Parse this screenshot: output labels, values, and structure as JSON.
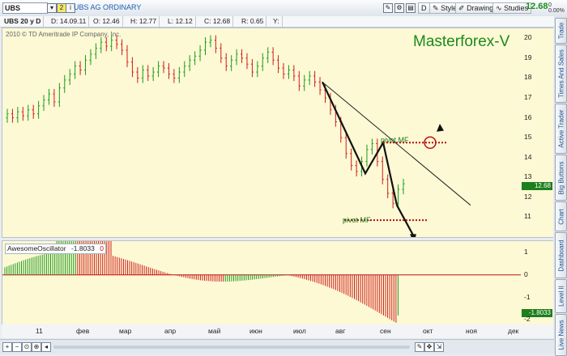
{
  "toolbar": {
    "symbol": "UBS",
    "badge": "2",
    "description": "UBS AG ORDINARY",
    "d_label": "D",
    "style_label": "Style",
    "drawings_label": "Drawings",
    "studies_label": "Studies",
    "last_price": "12.68",
    "change_a": "0",
    "change_b": "0.00%"
  },
  "info_bar": {
    "period": "UBS 20 y D",
    "date": "D: 14.09.11",
    "open": "O: 12.46",
    "high": "H: 12.77",
    "low": "L: 12.12",
    "close": "C: 12.68",
    "range": "R: 0.65",
    "y": "Y:"
  },
  "chart": {
    "copyright": "2010 © TD Ameritrade IP Company, Inc.",
    "watermark": "Masterforex-V",
    "pivot_label_1": "pivot MF",
    "pivot_label_2": "pivot MF",
    "price_badge": "12.68",
    "osc_name": "AwesomeOscillator",
    "osc_value": "-1.8033",
    "osc_zero": "0",
    "osc_badge": "-1.8033",
    "colors": {
      "up": "#1e9a1e",
      "down": "#d01c1c",
      "pivot": "#b01010",
      "background": "#fcf9d4"
    }
  },
  "chart_data": [
    {
      "type": "candlestick",
      "title": "UBS 20 y D",
      "x": [
        "фев",
        "мар",
        "апр",
        "май",
        "июн",
        "июл",
        "авг",
        "сен"
      ],
      "ylim": [
        10,
        20.5
      ],
      "y_ticks": [
        "20",
        "19",
        "18",
        "17",
        "16",
        "15",
        "14",
        "13",
        "12",
        "11"
      ],
      "closes": [
        16.2,
        16.0,
        16.3,
        16.1,
        16.4,
        16.2,
        16.6,
        16.9,
        17.2,
        16.8,
        17.5,
        17.9,
        18.2,
        18.6,
        18.4,
        18.9,
        19.2,
        19.5,
        19.8,
        19.6,
        19.9,
        19.7,
        19.4,
        18.8,
        18.3,
        18.0,
        18.4,
        18.1,
        18.3,
        18.6,
        18.5,
        18.2,
        18.0,
        18.3,
        18.6,
        18.9,
        19.1,
        19.4,
        19.8,
        19.9,
        19.5,
        19.0,
        18.6,
        18.9,
        19.2,
        19.0,
        18.7,
        18.3,
        18.6,
        19.0,
        19.3,
        18.9,
        18.5,
        18.2,
        18.4,
        18.1,
        17.6,
        17.9,
        18.1,
        17.8,
        17.4,
        17.0,
        16.4,
        15.8,
        15.0,
        14.2,
        13.6,
        13.3,
        13.8,
        14.4,
        14.7,
        13.8,
        12.9,
        12.2,
        11.7,
        12.4,
        12.68
      ],
      "pivot_levels": [
        14.75,
        10.85
      ]
    },
    {
      "type": "bar",
      "title": "AwesomeOscillator",
      "y_ticks": [
        "1",
        "0",
        "-1",
        "-2"
      ],
      "ylim": [
        -2.2,
        1.5
      ],
      "last_value": -1.8033
    }
  ],
  "time_axis": [
    "11",
    "фев",
    "мар",
    "апр",
    "май",
    "июн",
    "июл",
    "авг",
    "сен",
    "окт",
    "ноя",
    "дек"
  ],
  "side_tabs": [
    "Trade",
    "Times And Sales",
    "Active Trader",
    "Big Buttons",
    "Chart",
    "Dashboard",
    "Level II",
    "Live News"
  ]
}
